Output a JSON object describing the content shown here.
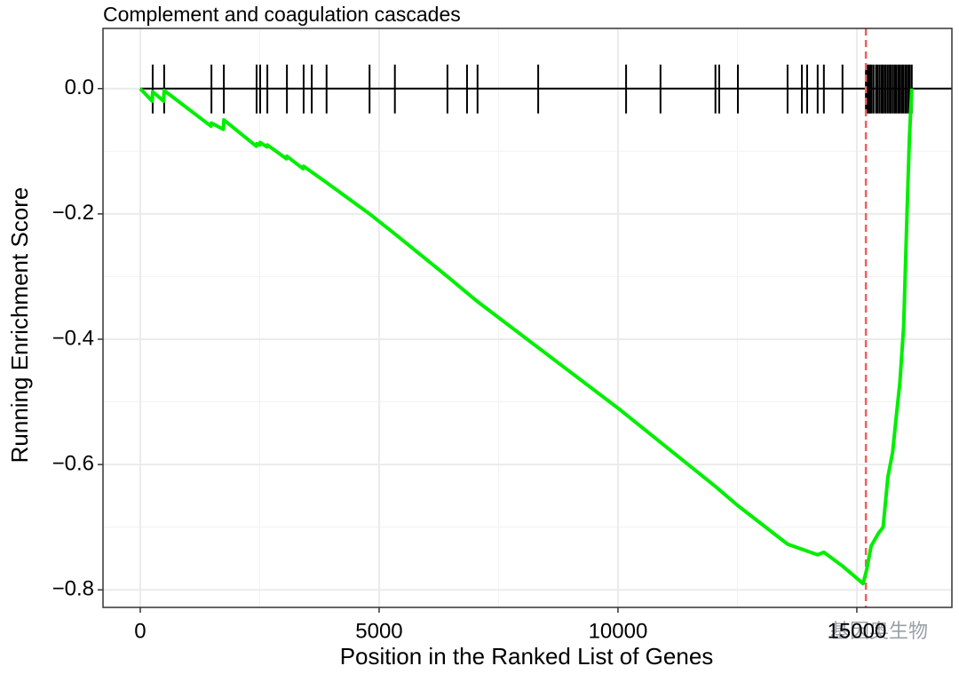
{
  "chart_data": {
    "type": "line",
    "title": "Complement and coagulation cascades",
    "x_label": "Position in the Ranked List of Genes",
    "y_label": "Running Enrichment Score",
    "watermark": "基因奥生物",
    "xlim": [
      -780,
      16990
    ],
    "ylim": [
      -0.828,
      0.096
    ],
    "xticks": [
      0,
      5000,
      10000,
      15000
    ],
    "yticks": [
      {
        "value": 0.0,
        "label": "0.0"
      },
      {
        "value": -0.2,
        "label": "−0.2"
      },
      {
        "value": -0.4,
        "label": "−0.4"
      },
      {
        "value": -0.6,
        "label": "−0.6"
      },
      {
        "value": -0.8,
        "label": "−0.8"
      }
    ],
    "x_minor_grid": [
      2500,
      7500,
      12500
    ],
    "y_minor_grid": [
      -0.7,
      -0.5,
      -0.3,
      -0.1
    ],
    "grid": true,
    "hline": 0,
    "vline": 15190,
    "vline_color": "#f0605d",
    "hits_color": "#000000",
    "hits": [
      260,
      500,
      1490,
      1750,
      2435,
      2510,
      2660,
      3070,
      3420,
      3590,
      3900,
      4800,
      5330,
      6430,
      6840,
      7060,
      8330,
      10170,
      10890,
      12040,
      12120,
      12510,
      13550,
      13850,
      13960,
      14180,
      14310,
      14700,
      15190,
      15220,
      15250,
      15280,
      15310,
      15350,
      15400,
      15430,
      15470,
      15510,
      15540,
      15580,
      15610,
      15650,
      15690,
      15720,
      15760,
      15800,
      15830,
      15870,
      15900,
      15940,
      15970,
      16010,
      16040,
      16080,
      16110,
      16150
    ],
    "series": [
      {
        "name": "Running Enrichment Score",
        "color": "#00ee00",
        "x": [
          0,
          250,
          260,
          490,
          500,
          1480,
          1490,
          1740,
          1750,
          2430,
          2440,
          2500,
          2510,
          2650,
          2660,
          3060,
          3070,
          3410,
          3420,
          3900,
          4800,
          5330,
          6430,
          7060,
          10000,
          12040,
          12500,
          13550,
          14180,
          14310,
          14700,
          15130,
          15200,
          15300,
          15450,
          15550,
          15650,
          15750,
          15830,
          15900,
          15980,
          16050,
          16100,
          16150
        ],
        "values": [
          0,
          -0.02,
          -0.005,
          -0.02,
          -0.003,
          -0.06,
          -0.055,
          -0.065,
          -0.05,
          -0.092,
          -0.088,
          -0.09,
          -0.086,
          -0.093,
          -0.09,
          -0.112,
          -0.108,
          -0.128,
          -0.124,
          -0.15,
          -0.2,
          -0.232,
          -0.3,
          -0.34,
          -0.51,
          -0.635,
          -0.665,
          -0.727,
          -0.744,
          -0.74,
          -0.762,
          -0.79,
          -0.77,
          -0.73,
          -0.71,
          -0.7,
          -0.62,
          -0.58,
          -0.52,
          -0.47,
          -0.38,
          -0.2,
          -0.08,
          0.0
        ]
      }
    ]
  }
}
